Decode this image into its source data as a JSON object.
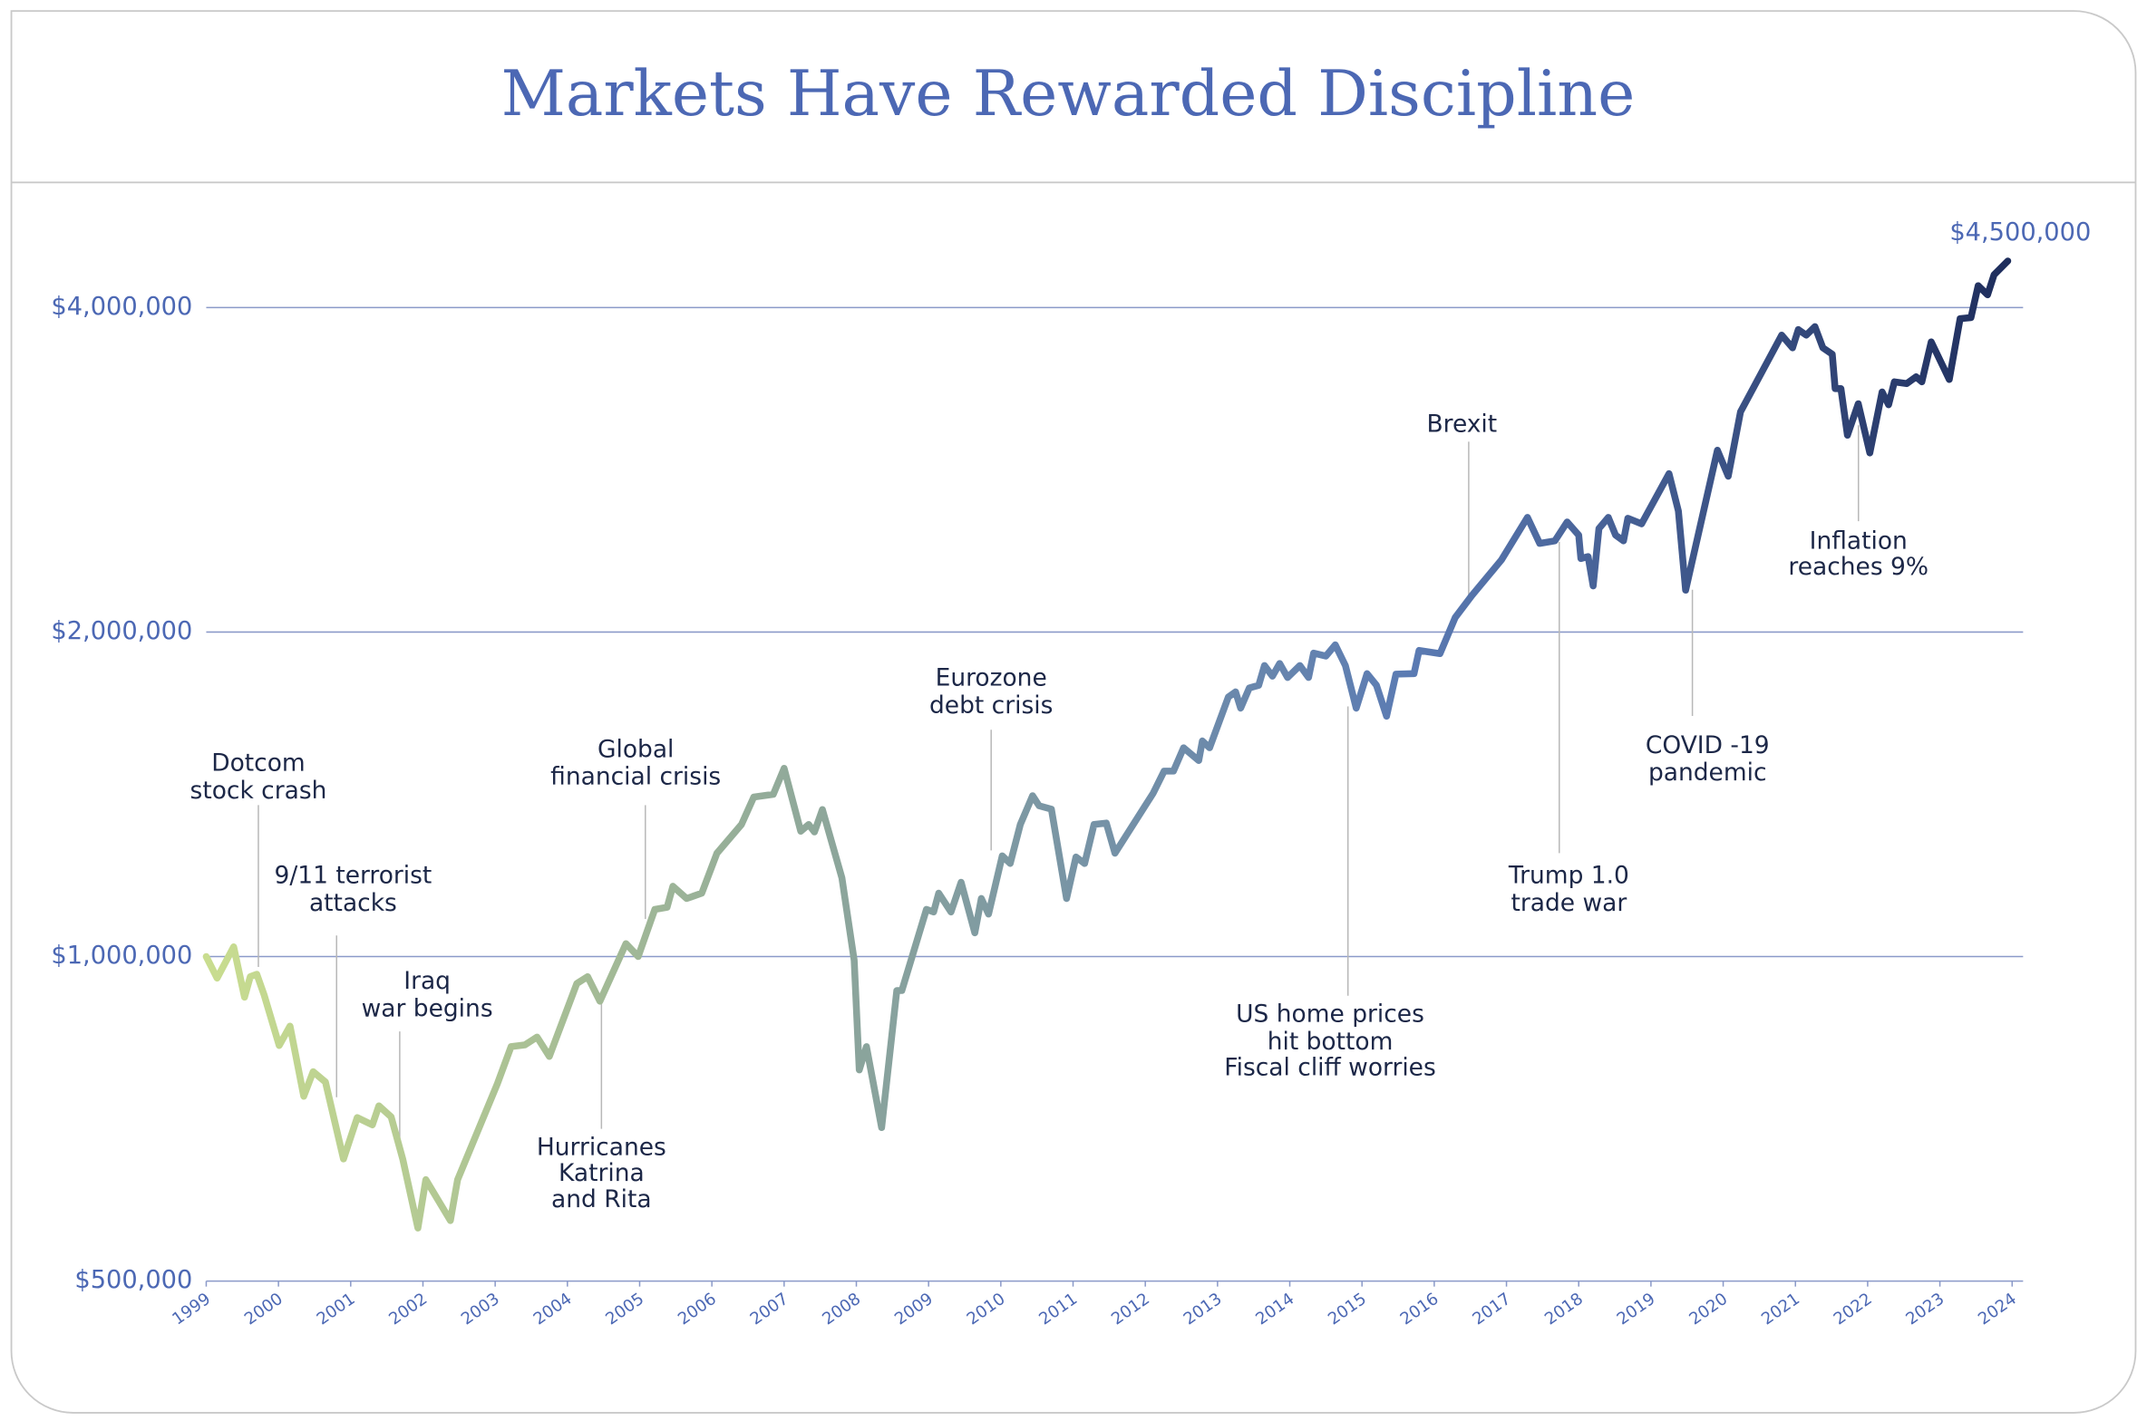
{
  "chart_data": {
    "type": "line",
    "title": "Markets Have Rewarded Discipline",
    "log_y": true,
    "grid": true,
    "line_colors": [
      "#c9dd8f",
      "#8fa89a",
      "#5b7bb3",
      "#1e2d5c"
    ],
    "xlim": [
      1999,
      2024
    ],
    "xticks": [
      1999,
      2000,
      2001,
      2002,
      2003,
      2004,
      2005,
      2006,
      2007,
      2008,
      2009,
      2010,
      2011,
      2012,
      2013,
      2014,
      2015,
      2016,
      2017,
      2018,
      2019,
      2020,
      2021,
      2022,
      2023,
      2024
    ],
    "ylim": [
      500000,
      4500000
    ],
    "yticks": [
      {
        "value": 500000,
        "label": "$500,000"
      },
      {
        "value": 1000000,
        "label": "$1,000,000"
      },
      {
        "value": 2000000,
        "label": "$2,000,000"
      },
      {
        "value": 4000000,
        "label": "$4,000,000"
      }
    ],
    "x": [
      1999.0,
      1999.15,
      1999.38,
      1999.53,
      1999.61,
      1999.7,
      1999.8,
      2000.01,
      2000.16,
      2000.35,
      2000.48,
      2000.65,
      2000.9,
      2001.09,
      2001.3,
      2001.39,
      2001.56,
      2001.72,
      2001.93,
      2002.04,
      2002.38,
      2002.48,
      2003.03,
      2003.22,
      2003.41,
      2003.58,
      2003.75,
      2004.13,
      2004.28,
      2004.45,
      2004.81,
      2004.98,
      2005.21,
      2005.38,
      2005.46,
      2005.65,
      2005.86,
      2006.07,
      2006.41,
      2006.58,
      2006.85,
      2007.0,
      2007.23,
      2007.34,
      2007.42,
      2007.53,
      2007.8,
      2007.97,
      2008.04,
      2008.14,
      2008.35,
      2008.56,
      2008.63,
      2008.97,
      2009.07,
      2009.14,
      2009.31,
      2009.45,
      2009.64,
      2009.73,
      2009.83,
      2010.02,
      2010.13,
      2010.27,
      2010.44,
      2010.53,
      2010.7,
      2010.91,
      2011.04,
      2011.16,
      2011.29,
      2011.46,
      2011.58,
      2012.11,
      2012.26,
      2012.39,
      2012.53,
      2012.74,
      2012.79,
      2012.89,
      2013.15,
      2013.25,
      2013.32,
      2013.44,
      2013.57,
      2013.65,
      2013.76,
      2013.86,
      2013.97,
      2014.14,
      2014.26,
      2014.33,
      2014.5,
      2014.63,
      2014.77,
      2014.92,
      2015.07,
      2015.2,
      2015.34,
      2015.47,
      2015.72,
      2015.79,
      2016.08,
      2016.29,
      2016.52,
      2016.93,
      2017.29,
      2017.46,
      2017.67,
      2017.84,
      2018.0,
      2018.03,
      2018.13,
      2018.2,
      2018.28,
      2018.41,
      2018.51,
      2018.62,
      2018.68,
      2018.87,
      2019.25,
      2019.38,
      2019.48,
      2019.92,
      2020.07,
      2020.24,
      2020.81,
      2020.96,
      2021.04,
      2021.15,
      2021.27,
      2021.38,
      2021.51,
      2021.55,
      2021.63,
      2021.72,
      2021.87,
      2022.03,
      2022.2,
      2022.29,
      2022.37,
      2022.54,
      2022.67,
      2022.75,
      2022.88,
      2023.13,
      2023.28,
      2023.43,
      2023.53,
      2023.66,
      2023.75,
      2023.94
    ],
    "values": [
      1000000,
      955000,
      1021000,
      917000,
      958000,
      963000,
      922000,
      827000,
      862000,
      742000,
      782000,
      765000,
      649000,
      709000,
      698000,
      727000,
      710000,
      649000,
      560000,
      621000,
      569000,
      621000,
      762000,
      825000,
      828000,
      842000,
      808000,
      944000,
      958000,
      909000,
      1028000,
      1000000,
      1106000,
      1111000,
      1162000,
      1132000,
      1145000,
      1247000,
      1326000,
      1406000,
      1414000,
      1495000,
      1307000,
      1326000,
      1305000,
      1369000,
      1183000,
      992000,
      785000,
      825000,
      694000,
      930000,
      930000,
      1106000,
      1100000,
      1145000,
      1100000,
      1172000,
      1052000,
      1132000,
      1095000,
      1240000,
      1220000,
      1326000,
      1410000,
      1380000,
      1370000,
      1132000,
      1237000,
      1220000,
      1326000,
      1330000,
      1247000,
      1418000,
      1486000,
      1486000,
      1562000,
      1520000,
      1585000,
      1562000,
      1741000,
      1760000,
      1700000,
      1775000,
      1785000,
      1862000,
      1820000,
      1870000,
      1815000,
      1862000,
      1815000,
      1912000,
      1900000,
      1946000,
      1862000,
      1700000,
      1830000,
      1785000,
      1671000,
      1828000,
      1830000,
      1923000,
      1910000,
      2063000,
      2162000,
      2333000,
      2555000,
      2417000,
      2430000,
      2530000,
      2460000,
      2340000,
      2350000,
      2207000,
      2495000,
      2555000,
      2460000,
      2430000,
      2550000,
      2520000,
      2805000,
      2590000,
      2187000,
      2949000,
      2790000,
      3201000,
      3771000,
      3670000,
      3816000,
      3771000,
      3840000,
      3670000,
      3620000,
      3364000,
      3364000,
      3045000,
      3257000,
      2932000,
      3340000,
      3250000,
      3413000,
      3400000,
      3450000,
      3413000,
      3717000,
      3430000,
      3906000,
      3915000,
      4191000,
      4110000,
      4290000,
      4418000
    ],
    "annotations": [
      {
        "lines": [
          "Dotcom",
          "stock crash"
        ]
      },
      {
        "lines": [
          "9/11 terrorist",
          "attacks"
        ]
      },
      {
        "lines": [
          "Iraq",
          "war begins"
        ]
      },
      {
        "lines": [
          "Hurricanes",
          "Katrina",
          "and Rita"
        ]
      },
      {
        "lines": [
          "Global",
          "financial crisis"
        ]
      },
      {
        "lines": [
          "Eurozone",
          "debt crisis"
        ]
      },
      {
        "lines": [
          "US home prices",
          "hit bottom",
          "Fiscal cliff worries"
        ]
      },
      {
        "lines": [
          "Brexit"
        ]
      },
      {
        "lines": [
          "Trump 1.0",
          "trade war"
        ]
      },
      {
        "lines": [
          "COVID -19",
          "pandemic"
        ]
      },
      {
        "lines": [
          "Inflation",
          "reaches 9%"
        ]
      },
      {
        "lines": [
          "$4,500,000"
        ]
      }
    ]
  }
}
